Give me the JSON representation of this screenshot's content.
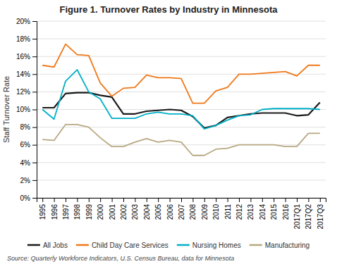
{
  "chart_data": {
    "type": "line",
    "title": "Figure 1. Turnover Rates by Industry in Minnesota",
    "ylabel": "Staff Turnover Rate",
    "annotations": [
      "Source: Quarterly Workforce Indicators, U.S. Census Bureau, data for Minnesota"
    ],
    "categories": [
      "1995",
      "1996",
      "1997",
      "1998",
      "1999",
      "2000",
      "2001",
      "2002",
      "2003",
      "2004",
      "2005",
      "2006",
      "2007",
      "2008",
      "2009",
      "2010",
      "2011",
      "2012",
      "2013",
      "2014",
      "2015",
      "2016",
      "2017Q1",
      "2017Q2",
      "2017Q3"
    ],
    "series": [
      {
        "name": "All Jobs",
        "color": "#1a1a1a",
        "values": [
          0.102,
          0.102,
          0.118,
          0.119,
          0.119,
          0.116,
          0.114,
          0.095,
          0.095,
          0.098,
          0.099,
          0.1,
          0.099,
          0.092,
          0.079,
          0.082,
          0.091,
          0.093,
          0.095,
          0.096,
          0.096,
          0.096,
          0.093,
          0.094,
          0.108
        ]
      },
      {
        "name": "Child Day Care Services",
        "color": "#f07818",
        "values": [
          0.15,
          0.148,
          0.174,
          0.162,
          0.161,
          0.13,
          0.115,
          0.124,
          0.125,
          0.139,
          0.136,
          0.136,
          0.135,
          0.107,
          0.107,
          0.121,
          0.125,
          0.14,
          0.14,
          0.141,
          0.142,
          0.143,
          0.138,
          0.15,
          0.15
        ]
      },
      {
        "name": "Nursing Homes",
        "color": "#00b0c8",
        "values": [
          0.1,
          0.089,
          0.132,
          0.145,
          0.12,
          0.112,
          0.09,
          0.09,
          0.09,
          0.095,
          0.097,
          0.095,
          0.095,
          0.093,
          0.078,
          0.082,
          0.088,
          0.093,
          0.094,
          0.1,
          0.101,
          0.101,
          0.101,
          0.101,
          0.1
        ]
      },
      {
        "name": "Manufacturing",
        "color": "#b8a882",
        "values": [
          0.066,
          0.065,
          0.083,
          0.083,
          0.08,
          0.068,
          0.058,
          0.058,
          0.063,
          0.067,
          0.063,
          0.065,
          0.063,
          0.048,
          0.048,
          0.055,
          0.056,
          0.06,
          0.06,
          0.06,
          0.06,
          0.058,
          0.058,
          0.073,
          0.073
        ]
      }
    ],
    "ylim": [
      0,
      0.2
    ],
    "yticks": [
      {
        "value": 0.0,
        "label": "0%"
      },
      {
        "value": 0.02,
        "label": "2%"
      },
      {
        "value": 0.04,
        "label": "4%"
      },
      {
        "value": 0.06,
        "label": "6%"
      },
      {
        "value": 0.08,
        "label": "8%"
      },
      {
        "value": 0.1,
        "label": "10%"
      },
      {
        "value": 0.12,
        "label": "12%"
      },
      {
        "value": 0.14,
        "label": "14%"
      },
      {
        "value": 0.16,
        "label": "16%"
      },
      {
        "value": 0.18,
        "label": "18%"
      },
      {
        "value": 0.2,
        "label": "20%"
      }
    ],
    "grid": true,
    "legend": "bottom"
  }
}
